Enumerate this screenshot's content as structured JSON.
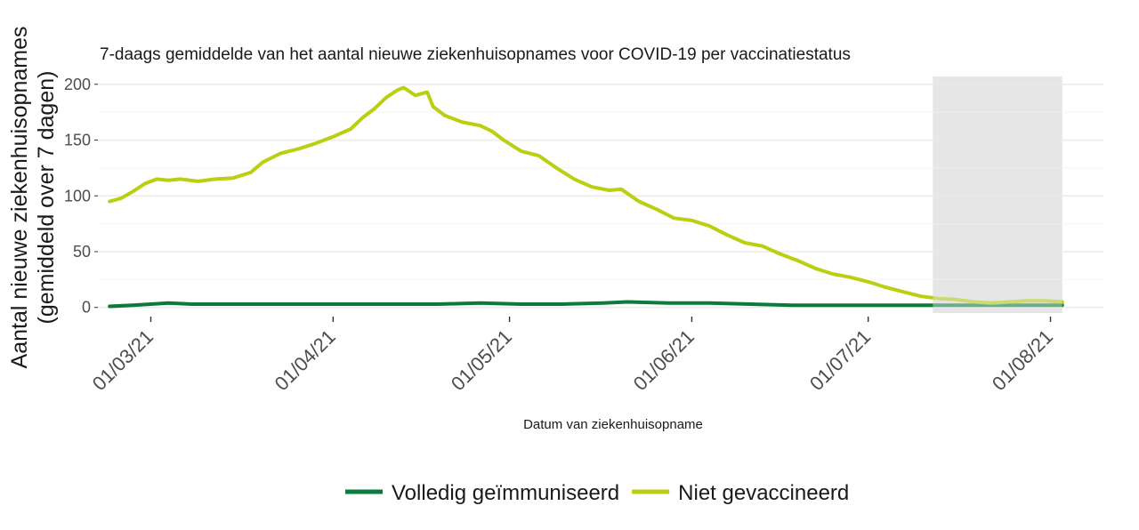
{
  "chart_data": {
    "type": "line",
    "title": "7-daags gemiddelde van het aantal nieuwe ziekenhuisopnames voor COVID-19 per vaccinatiestatus",
    "xlabel": "Datum van ziekenhuisopname",
    "ylabel_lines": [
      "Aantal nieuwe ziekenhuisopnames",
      "(gemiddeld over 7 dagen)"
    ],
    "x_range": [
      "2021-02-20",
      "2021-08-10"
    ],
    "ylim": [
      -5,
      207
    ],
    "yticks": [
      0,
      50,
      100,
      150,
      200
    ],
    "xticks": [
      {
        "date": "2021-03-01",
        "label": "01/03/21"
      },
      {
        "date": "2021-04-01",
        "label": "01/04/21"
      },
      {
        "date": "2021-05-01",
        "label": "01/05/21"
      },
      {
        "date": "2021-06-01",
        "label": "01/06/21"
      },
      {
        "date": "2021-07-01",
        "label": "01/07/21"
      },
      {
        "date": "2021-08-01",
        "label": "01/08/21"
      }
    ],
    "grid": true,
    "legend_position": "bottom",
    "shaded_region": {
      "start": "2021-07-12",
      "end": "2021-08-03",
      "color": "#e6e6e6"
    },
    "series": [
      {
        "name": "Volledig geïmmuniseerd",
        "color": "#0b7a3e",
        "points": [
          [
            "2021-02-22",
            1
          ],
          [
            "2021-02-26",
            2
          ],
          [
            "2021-03-01",
            3
          ],
          [
            "2021-03-04",
            4
          ],
          [
            "2021-03-08",
            3
          ],
          [
            "2021-03-15",
            3
          ],
          [
            "2021-03-22",
            3
          ],
          [
            "2021-03-29",
            3
          ],
          [
            "2021-04-05",
            3
          ],
          [
            "2021-04-12",
            3
          ],
          [
            "2021-04-19",
            3
          ],
          [
            "2021-04-26",
            4
          ],
          [
            "2021-05-03",
            3
          ],
          [
            "2021-05-10",
            3
          ],
          [
            "2021-05-17",
            4
          ],
          [
            "2021-05-21",
            5
          ],
          [
            "2021-05-28",
            4
          ],
          [
            "2021-06-04",
            4
          ],
          [
            "2021-06-11",
            3
          ],
          [
            "2021-06-18",
            2
          ],
          [
            "2021-06-25",
            2
          ],
          [
            "2021-07-02",
            2
          ],
          [
            "2021-07-09",
            2
          ],
          [
            "2021-07-16",
            2
          ],
          [
            "2021-07-23",
            2
          ],
          [
            "2021-07-30",
            2
          ],
          [
            "2021-08-03",
            2
          ]
        ]
      },
      {
        "name": "Niet gevaccineerd",
        "color": "#b9cf0f",
        "points": [
          [
            "2021-02-22",
            95
          ],
          [
            "2021-02-24",
            98
          ],
          [
            "2021-02-26",
            104
          ],
          [
            "2021-02-28",
            111
          ],
          [
            "2021-03-02",
            115
          ],
          [
            "2021-03-04",
            114
          ],
          [
            "2021-03-06",
            115
          ],
          [
            "2021-03-09",
            113
          ],
          [
            "2021-03-12",
            115
          ],
          [
            "2021-03-15",
            116
          ],
          [
            "2021-03-18",
            121
          ],
          [
            "2021-03-20",
            130
          ],
          [
            "2021-03-23",
            138
          ],
          [
            "2021-03-26",
            142
          ],
          [
            "2021-03-29",
            147
          ],
          [
            "2021-04-01",
            153
          ],
          [
            "2021-04-04",
            160
          ],
          [
            "2021-04-06",
            170
          ],
          [
            "2021-04-08",
            178
          ],
          [
            "2021-04-10",
            188
          ],
          [
            "2021-04-12",
            195
          ],
          [
            "2021-04-13",
            197
          ],
          [
            "2021-04-15",
            190
          ],
          [
            "2021-04-17",
            193
          ],
          [
            "2021-04-18",
            180
          ],
          [
            "2021-04-20",
            172
          ],
          [
            "2021-04-23",
            166
          ],
          [
            "2021-04-26",
            163
          ],
          [
            "2021-04-28",
            158
          ],
          [
            "2021-04-30",
            150
          ],
          [
            "2021-05-03",
            140
          ],
          [
            "2021-05-06",
            136
          ],
          [
            "2021-05-09",
            125
          ],
          [
            "2021-05-12",
            115
          ],
          [
            "2021-05-15",
            108
          ],
          [
            "2021-05-18",
            105
          ],
          [
            "2021-05-20",
            106
          ],
          [
            "2021-05-23",
            95
          ],
          [
            "2021-05-26",
            88
          ],
          [
            "2021-05-29",
            80
          ],
          [
            "2021-06-01",
            78
          ],
          [
            "2021-06-04",
            73
          ],
          [
            "2021-06-07",
            65
          ],
          [
            "2021-06-10",
            58
          ],
          [
            "2021-06-13",
            55
          ],
          [
            "2021-06-16",
            48
          ],
          [
            "2021-06-19",
            42
          ],
          [
            "2021-06-22",
            35
          ],
          [
            "2021-06-25",
            30
          ],
          [
            "2021-06-28",
            27
          ],
          [
            "2021-07-01",
            23
          ],
          [
            "2021-07-04",
            18
          ],
          [
            "2021-07-07",
            14
          ],
          [
            "2021-07-10",
            10
          ],
          [
            "2021-07-13",
            8
          ],
          [
            "2021-07-16",
            7
          ],
          [
            "2021-07-19",
            5
          ],
          [
            "2021-07-22",
            4
          ],
          [
            "2021-07-25",
            5
          ],
          [
            "2021-07-28",
            6
          ],
          [
            "2021-07-31",
            6
          ],
          [
            "2021-08-03",
            5
          ]
        ]
      }
    ]
  }
}
